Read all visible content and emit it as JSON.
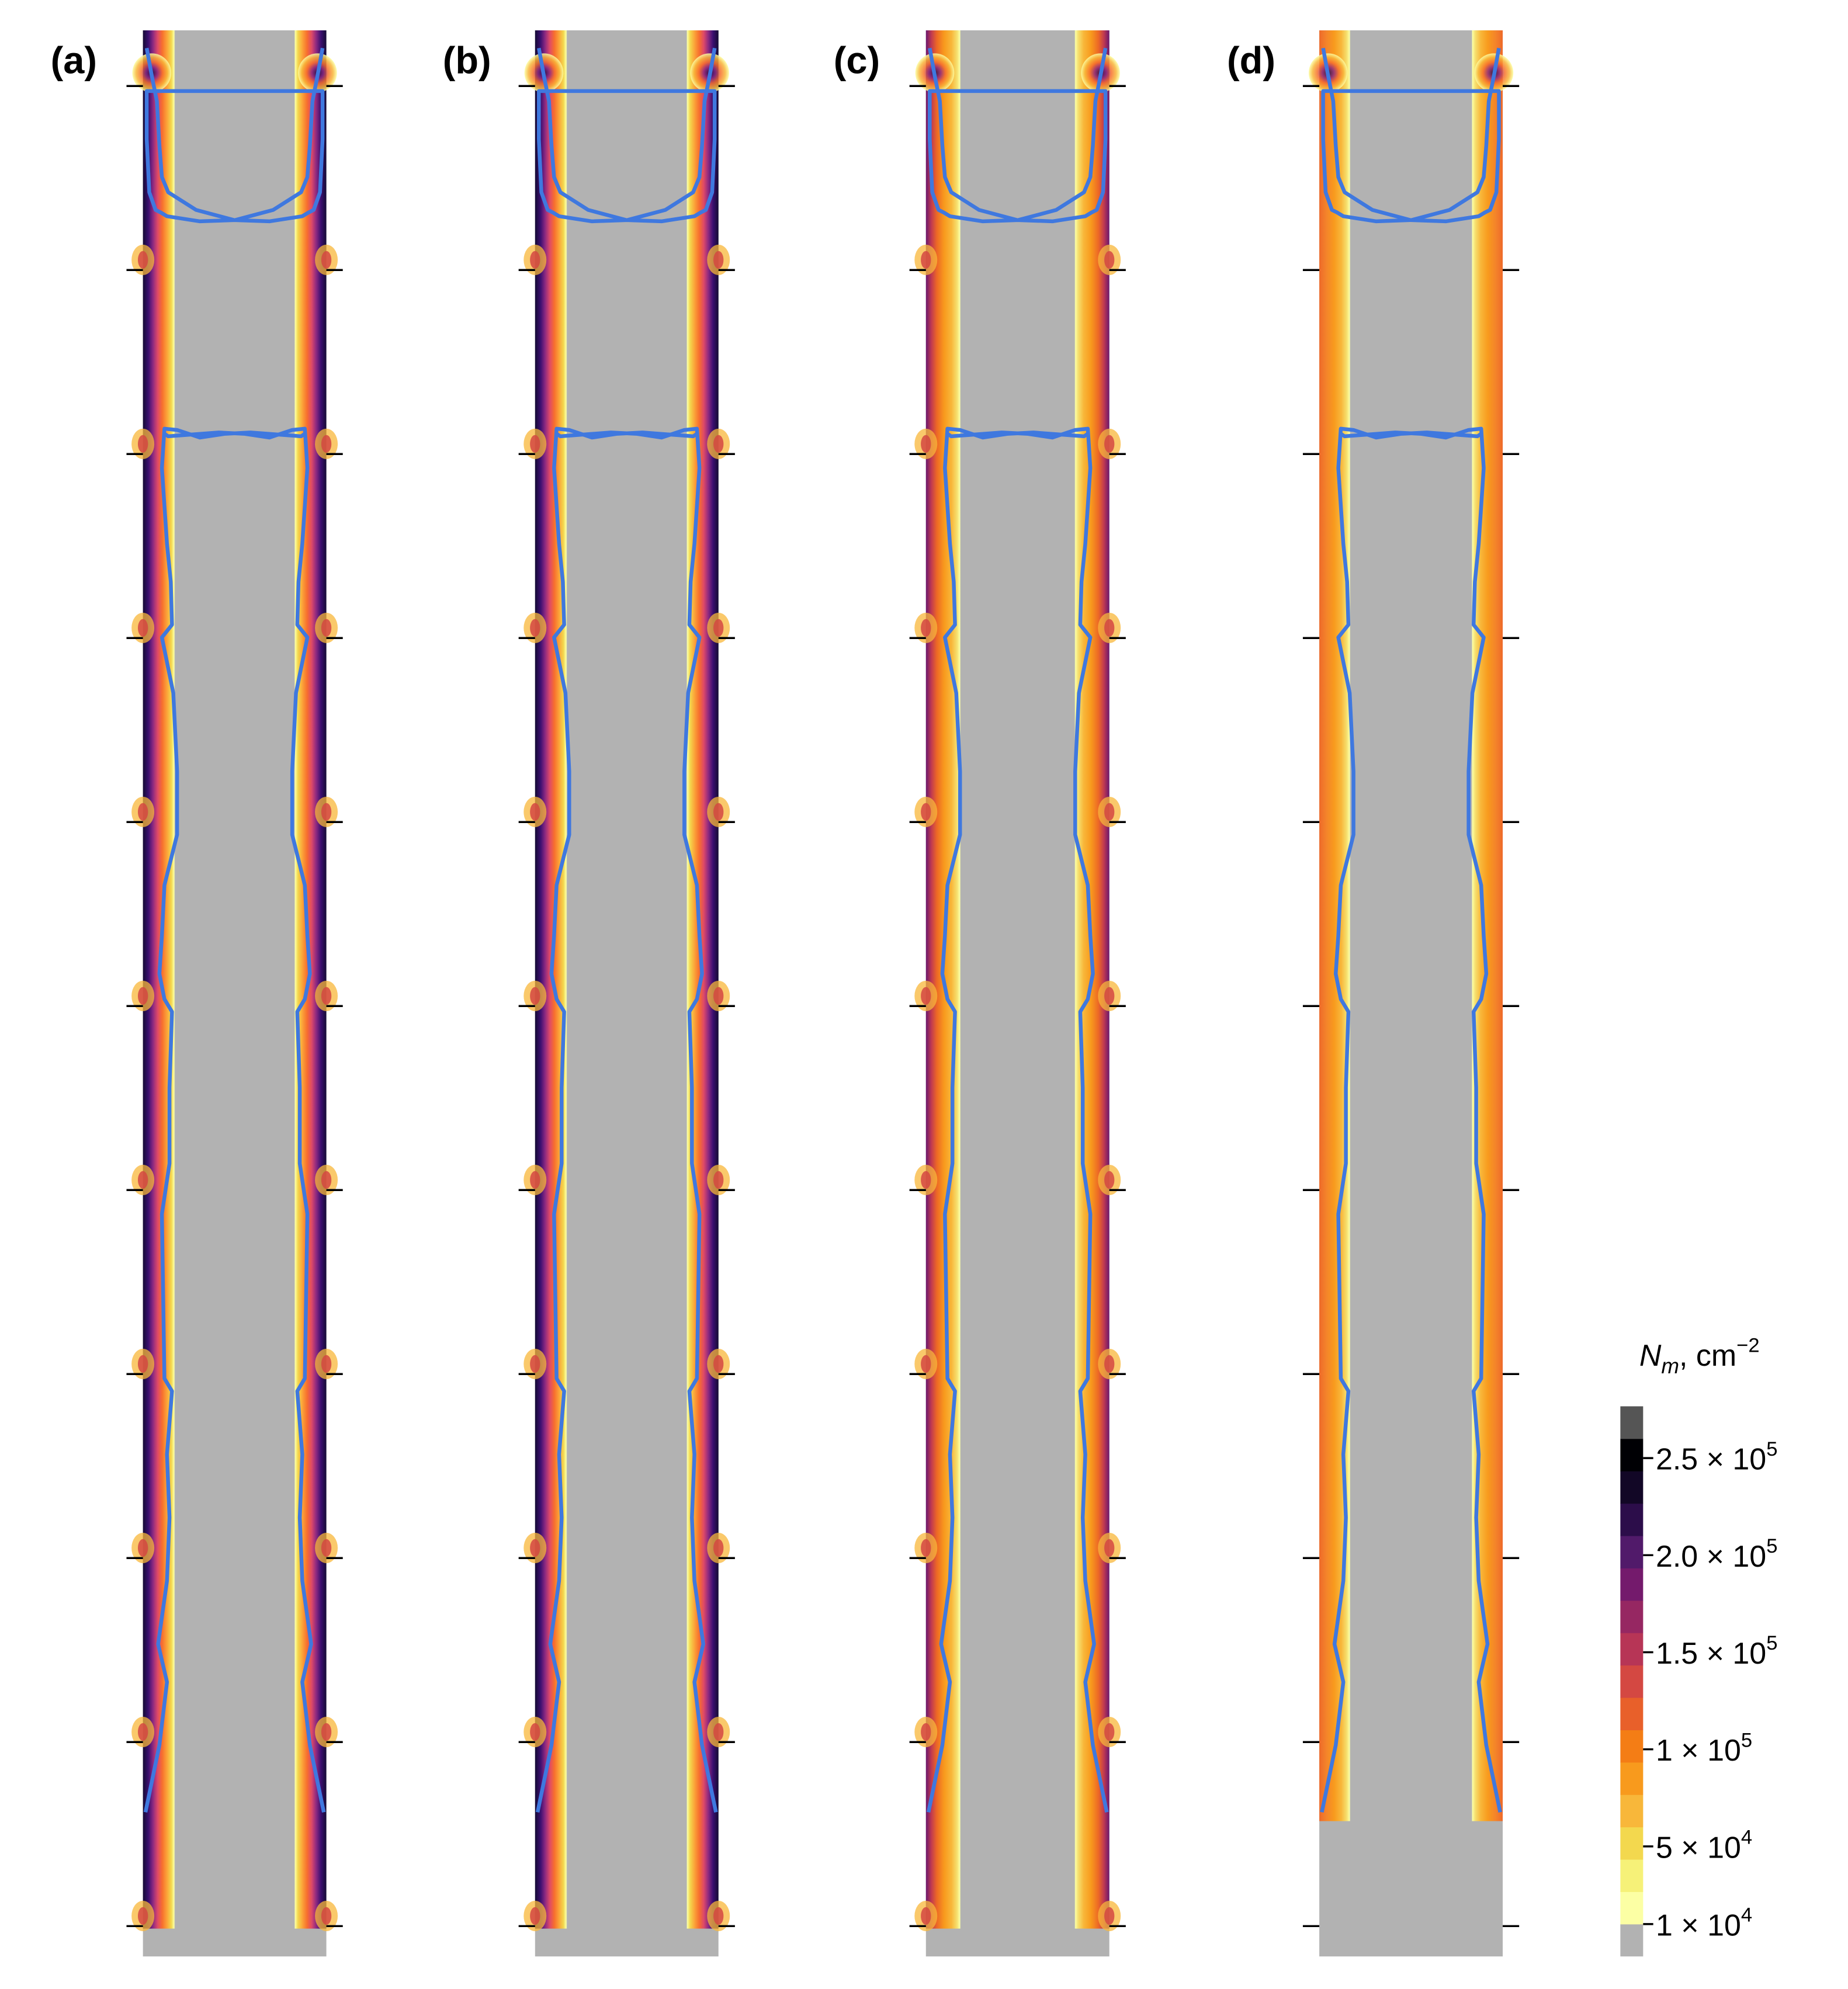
{
  "chart_data": {
    "type": "heatmap",
    "panels": [
      {
        "label": "(a)",
        "style": "dark"
      },
      {
        "label": "(b)",
        "style": "dark"
      },
      {
        "label": "(c)",
        "style": "medium"
      },
      {
        "label": "(d)",
        "style": "light"
      }
    ],
    "y_ticks_count": 11,
    "colorbar": {
      "title": "N_m, cm^-2",
      "title_main": "N",
      "title_sub": "m",
      "title_unit": ", cm",
      "title_exp": "−2",
      "range": [
        10000,
        260000
      ],
      "ticks": [
        {
          "value": 250000,
          "mantissa": "2.5",
          "exp": "5"
        },
        {
          "value": 200000,
          "mantissa": "2.0",
          "exp": "5"
        },
        {
          "value": 150000,
          "mantissa": "1.5",
          "exp": "5"
        },
        {
          "value": 100000,
          "mantissa": "1",
          "exp": "5"
        },
        {
          "value": 50000,
          "mantissa": "5",
          "exp": "4"
        },
        {
          "value": 10000,
          "mantissa": "1",
          "exp": "4"
        }
      ],
      "colors": [
        "#fcffa4",
        "#f6f178",
        "#f3d84e",
        "#f8b73a",
        "#f89a1d",
        "#f47d15",
        "#e8602a",
        "#d44842",
        "#b73556",
        "#962762",
        "#741a6c",
        "#511a6a",
        "#2c0d4a",
        "#120726",
        "#000004",
        "#555555"
      ],
      "under_color": "#b2b2b2"
    },
    "background_color": "#b2b2b2",
    "contour_color": "#3f78df"
  }
}
